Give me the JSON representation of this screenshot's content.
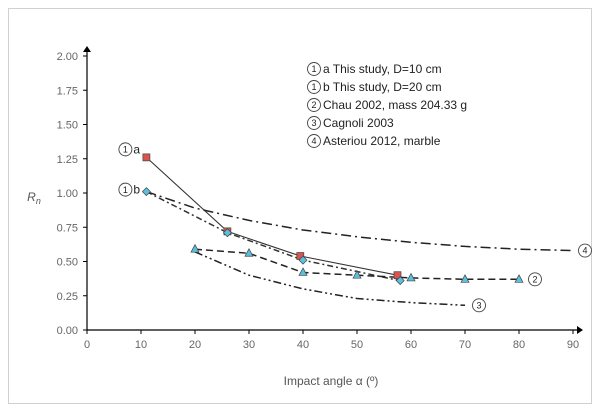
{
  "chart_data": {
    "type": "line",
    "xlabel": "Impact angle α (º)",
    "ylabel_main": "R",
    "ylabel_sub": "n",
    "xlim": [
      0,
      90
    ],
    "ylim": [
      0,
      2.0
    ],
    "x_ticks": [
      "0",
      "10",
      "20",
      "30",
      "40",
      "50",
      "60",
      "70",
      "80",
      "90"
    ],
    "y_ticks": [
      "0.00",
      "0.25",
      "0.50",
      "0.75",
      "1.00",
      "1.25",
      "1.50",
      "1.75",
      "2.00"
    ],
    "grid": false,
    "legend_position": "top-right",
    "series": [
      {
        "name": "a This study, D=10 cm",
        "marker_number": "1",
        "end_label": "a",
        "line_style": "solid",
        "color": "#333333",
        "marker": "square",
        "marker_color": "#d9534f",
        "x": [
          11,
          26,
          39.5,
          57.5
        ],
        "y": [
          1.26,
          0.72,
          0.54,
          0.4
        ]
      },
      {
        "name": "b This study, D=20 cm",
        "marker_number": "1",
        "end_label": "b",
        "line_style": "dashdot-fine",
        "color": "#333333",
        "marker": "diamond",
        "marker_color": "#5bc0de",
        "x": [
          11,
          26,
          40,
          58
        ],
        "y": [
          1.01,
          0.71,
          0.51,
          0.36
        ]
      },
      {
        "name": "Chau 2002, mass 204.33 g",
        "marker_number": "2",
        "line_style": "dashed",
        "color": "#222222",
        "marker": "triangle",
        "marker_color": "#5bc0de",
        "x": [
          20,
          30,
          40,
          50,
          60,
          70,
          80
        ],
        "y": [
          0.59,
          0.56,
          0.42,
          0.4,
          0.38,
          0.37,
          0.37
        ]
      },
      {
        "name": "Cagnoli 2003",
        "marker_number": "3",
        "line_style": "dashdotdot",
        "color": "#222222",
        "marker": "none",
        "x": [
          20,
          30,
          40,
          50,
          60,
          70
        ],
        "y": [
          0.57,
          0.4,
          0.3,
          0.23,
          0.2,
          0.18
        ]
      },
      {
        "name": "Asteriou 2012, marble",
        "marker_number": "4",
        "line_style": "dashdot",
        "color": "#222222",
        "marker": "none",
        "x": [
          11,
          20,
          30,
          40,
          50,
          60,
          70,
          80,
          90
        ],
        "y": [
          1.01,
          0.89,
          0.8,
          0.73,
          0.68,
          0.64,
          0.61,
          0.59,
          0.58
        ]
      }
    ]
  }
}
